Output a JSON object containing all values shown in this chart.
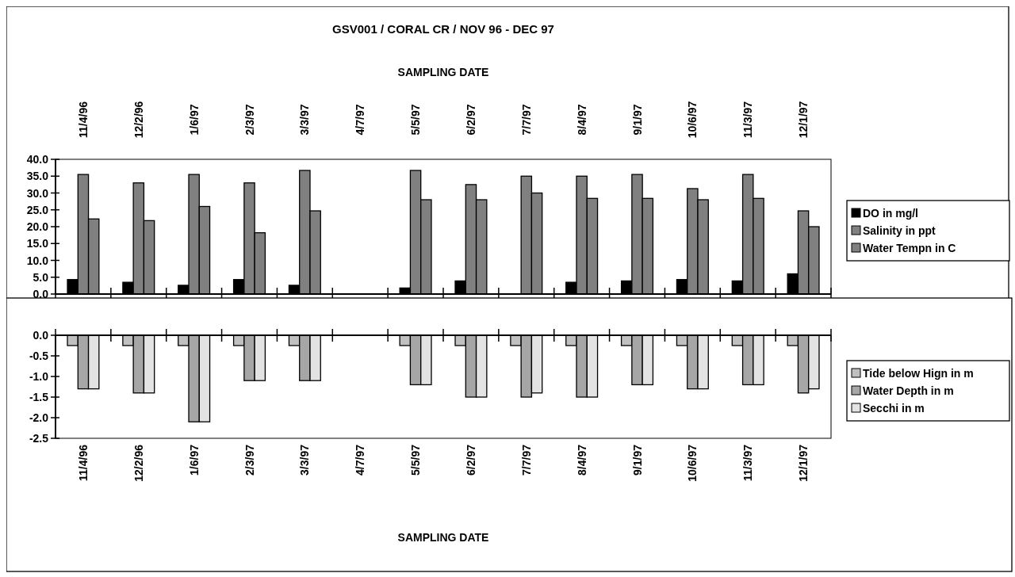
{
  "chart_data": [
    {
      "type": "bar",
      "title": "GSV001 / CORAL CR / NOV 96 - DEC 97",
      "xlabel": "SAMPLING DATE",
      "categories": [
        "11/4/96",
        "12/2/96",
        "1/6/97",
        "2/3/97",
        "3/3/97",
        "4/7/97",
        "5/5/97",
        "6/2/97",
        "7/7/97",
        "8/4/97",
        "9/1/97",
        "10/6/97",
        "11/3/97",
        "12/1/97"
      ],
      "series": [
        {
          "name": "DO in mg/l",
          "color": "#000000",
          "values": [
            4.3,
            3.5,
            2.6,
            4.3,
            2.6,
            null,
            1.8,
            3.9,
            null,
            3.5,
            3.9,
            4.3,
            3.9,
            6.0
          ]
        },
        {
          "name": "Salinity in ppt",
          "color": "#808080",
          "values": [
            35.5,
            33.0,
            35.5,
            33.0,
            36.7,
            null,
            36.7,
            32.5,
            35.0,
            35.0,
            35.5,
            31.3,
            35.5,
            24.7
          ]
        },
        {
          "name": "Water Tempn in C",
          "color": "#808080",
          "values": [
            22.3,
            21.8,
            26.0,
            18.2,
            24.7,
            null,
            28.0,
            28.0,
            30.0,
            28.4,
            28.4,
            28.0,
            28.4,
            20.0
          ]
        }
      ],
      "ylim": [
        0,
        40
      ],
      "yticks": [
        {
          "value": 0,
          "label": "0.0"
        },
        {
          "value": 5,
          "label": "5.0"
        },
        {
          "value": 10,
          "label": "10.0"
        },
        {
          "value": 15,
          "label": "15.0"
        },
        {
          "value": 20,
          "label": "20.0"
        },
        {
          "value": 25,
          "label": "25.0"
        },
        {
          "value": 30,
          "label": "30.0"
        },
        {
          "value": 35,
          "label": "35.0"
        },
        {
          "value": 40,
          "label": "40.0"
        }
      ],
      "legend": "right"
    },
    {
      "type": "bar",
      "xlabel": "SAMPLING DATE",
      "categories": [
        "11/4/96",
        "12/2/96",
        "1/6/97",
        "2/3/97",
        "3/3/97",
        "4/7/97",
        "5/5/97",
        "6/2/97",
        "7/7/97",
        "8/4/97",
        "9/1/97",
        "10/6/97",
        "11/3/97",
        "12/1/97"
      ],
      "series": [
        {
          "name": "Tide below Hign in m",
          "color": "#c0c0c0",
          "values": [
            -0.25,
            -0.25,
            -0.25,
            -0.25,
            -0.25,
            null,
            -0.25,
            -0.25,
            -0.25,
            -0.25,
            -0.25,
            -0.25,
            -0.25,
            -0.25
          ]
        },
        {
          "name": "Water Depth in m",
          "color": "#a6a6a6",
          "values": [
            -1.3,
            -1.4,
            -2.1,
            -1.1,
            -1.1,
            null,
            -1.2,
            -1.5,
            -1.5,
            -1.5,
            -1.2,
            -1.3,
            -1.2,
            -1.4
          ]
        },
        {
          "name": "Secchi in m",
          "color": "#e3e3e3",
          "values": [
            -1.3,
            -1.4,
            -2.1,
            -1.1,
            -1.1,
            null,
            -1.2,
            -1.5,
            -1.4,
            -1.5,
            -1.2,
            -1.3,
            -1.2,
            -1.3
          ]
        }
      ],
      "ylim": [
        -2.5,
        0
      ],
      "yticks": [
        {
          "value": -2.5,
          "label": "-2.5"
        },
        {
          "value": -2,
          "label": "-2.0"
        },
        {
          "value": -1.5,
          "label": "-1.5"
        },
        {
          "value": -1,
          "label": "-1.0"
        },
        {
          "value": -0.5,
          "label": "-0.5"
        },
        {
          "value": 0,
          "label": "0.0"
        }
      ],
      "legend": "right"
    }
  ]
}
